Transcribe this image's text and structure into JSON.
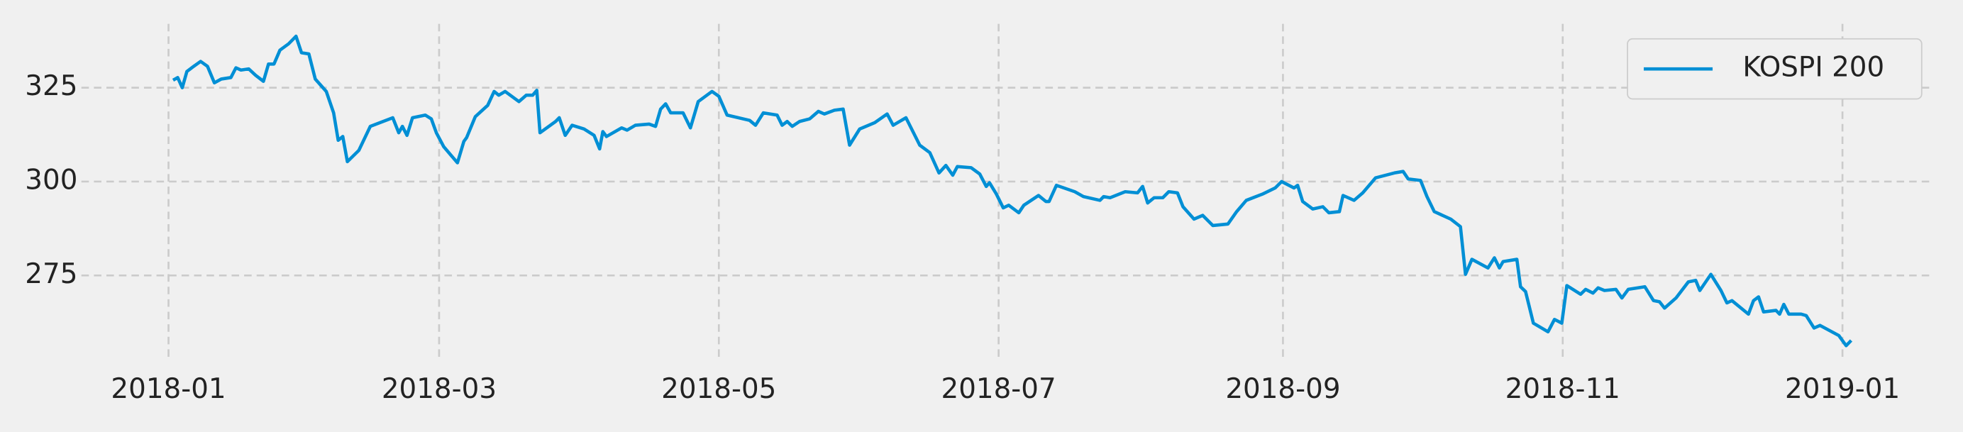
{
  "chart_data": {
    "type": "line",
    "series": [
      {
        "name": "KOSPI 200",
        "color": "#008fd5",
        "x": [
          1,
          2,
          3,
          4,
          5.5,
          7,
          8.5,
          10,
          11.5,
          13.6,
          14.7,
          15.8,
          17.5,
          19,
          20.7,
          21.8,
          23,
          24.3,
          26.2,
          27.8,
          29,
          30.6,
          32,
          34.4,
          36,
          37,
          38,
          39,
          41.5,
          44,
          48.9,
          50.2,
          51,
          52,
          53.2,
          56,
          57.3,
          58.4,
          60,
          63,
          64.4,
          65,
          66.9,
          69.6,
          71,
          72,
          73.4,
          76.4,
          78,
          79.4,
          80.3,
          81,
          84.4,
          85.2,
          86.5,
          88,
          90.6,
          92.8,
          94,
          94.7,
          95.5,
          98.8,
          100,
          101.8,
          104.8,
          106.2,
          107.3,
          108.4,
          109.5,
          112.2,
          113.8,
          115.5,
          118.5,
          120,
          121.8,
          126.7,
          128,
          129.7,
          132.7,
          133.8,
          134.9,
          136,
          137.6,
          139.8,
          141.7,
          143,
          145.2,
          147.1,
          148.5,
          150.7,
          154,
          156.7,
          158,
          160.8,
          163.8,
          166,
          168,
          169.5,
          171,
          172,
          175,
          176.9,
          178.3,
          179,
          180.5,
          182,
          183.2,
          185.4,
          186.5,
          189.7,
          191.3,
          192,
          193.6,
          197.6,
          199.5,
          203.1,
          203.9,
          205.3,
          208.6,
          211.3,
          212.4,
          213.5,
          214.9,
          216.8,
          218.1,
          220,
          221.2,
          223.6,
          225.5,
          227.7,
          231,
          232.9,
          235,
          238.6,
          241.3,
          242.7,
          245.4,
          246.2,
          247.3,
          249.5,
          251.7,
          253,
          255.3,
          256.1,
          258.5,
          260.4,
          263.2,
          267.3,
          269.2,
          270.3,
          273,
          274.4,
          276,
          279.6,
          281.7,
          282.8,
          284.2,
          287.7,
          289.1,
          290.2,
          291,
          294,
          294.8,
          295.9,
          297.6,
          300.8,
          302.2,
          303.8,
          304.9,
          307.9,
          309,
          310.6,
          311.7,
          313.1,
          315.6,
          316.9,
          318.3,
          321.9,
          323.8,
          325.1,
          326.2,
          328.7,
          331.4,
          333,
          333.9,
          336.3,
          338.5,
          339.8,
          340.9,
          344.5,
          345.6,
          346.7,
          347.8,
          350.5,
          351.3,
          352.2,
          353.3,
          356,
          357.1,
          358.8,
          360.1,
          364.2,
          365.8,
          366.9
        ],
        "values": [
          327,
          327.7,
          325,
          329.3,
          330.7,
          332,
          330.7,
          326.3,
          327.3,
          327.7,
          330.3,
          329.7,
          330,
          328.3,
          326.7,
          331.3,
          331.3,
          335,
          336.7,
          338.7,
          334.3,
          334,
          327.3,
          324,
          318.3,
          311,
          312,
          305.3,
          308.3,
          314.7,
          317,
          313,
          314.7,
          312.3,
          317,
          317.7,
          316.7,
          313,
          309.3,
          305,
          310.7,
          311.7,
          317.3,
          320.3,
          324,
          323,
          324,
          321.3,
          323,
          323,
          324.3,
          313,
          316,
          317,
          312.3,
          315,
          314,
          312.3,
          308.7,
          313.3,
          312,
          314.3,
          313.7,
          315,
          315.3,
          314.7,
          319.3,
          320.7,
          318.3,
          318.3,
          314.3,
          321.3,
          324,
          322.7,
          317.7,
          316.3,
          315,
          318.3,
          317.7,
          315,
          316,
          314.7,
          316,
          316.7,
          318.7,
          318,
          319,
          319.3,
          309.7,
          314,
          315.7,
          318,
          315,
          317,
          309.7,
          307.7,
          302.3,
          304.3,
          301.7,
          304,
          303.7,
          302,
          298.7,
          299.7,
          296.7,
          293,
          293.7,
          291.7,
          293.7,
          296.3,
          294.7,
          294.7,
          299,
          297.3,
          296,
          295,
          296,
          295.7,
          297.3,
          297,
          298.7,
          294.3,
          295.7,
          295.7,
          297.3,
          297,
          293.3,
          290,
          291,
          288.3,
          288.7,
          292,
          295,
          296.7,
          298.3,
          300,
          298.3,
          299,
          294.7,
          292.7,
          293.3,
          291.7,
          292,
          296.3,
          295,
          297,
          301,
          302.3,
          302.7,
          300.7,
          300.3,
          296,
          292,
          290,
          288,
          275.3,
          279.3,
          277,
          279.7,
          277,
          278.7,
          279.3,
          272,
          270.7,
          262.3,
          260,
          263.3,
          262.3,
          272.3,
          270,
          271.3,
          270.3,
          271.7,
          271,
          271.3,
          269,
          271.3,
          272,
          268.3,
          268,
          266.3,
          269,
          273.3,
          273.7,
          271,
          275.3,
          271,
          267.7,
          268.3,
          264.7,
          268.3,
          269.3,
          265.3,
          265.7,
          264.7,
          267.3,
          264.7,
          264.7,
          264.3,
          261,
          261.7,
          259,
          256.3,
          257.7
        ]
      }
    ],
    "xlim": [
      -19,
      385
    ],
    "xticks": [
      {
        "value": 0,
        "label": "2018-01"
      },
      {
        "value": 59,
        "label": "2018-03"
      },
      {
        "value": 120,
        "label": "2018-05"
      },
      {
        "value": 181,
        "label": "2018-07"
      },
      {
        "value": 243,
        "label": "2018-09"
      },
      {
        "value": 304,
        "label": "2018-11"
      },
      {
        "value": 365,
        "label": "2019-01"
      }
    ],
    "ylim": [
      253,
      342
    ],
    "yticks": [
      275,
      300,
      325
    ],
    "grid": true,
    "legend": "upper right"
  }
}
